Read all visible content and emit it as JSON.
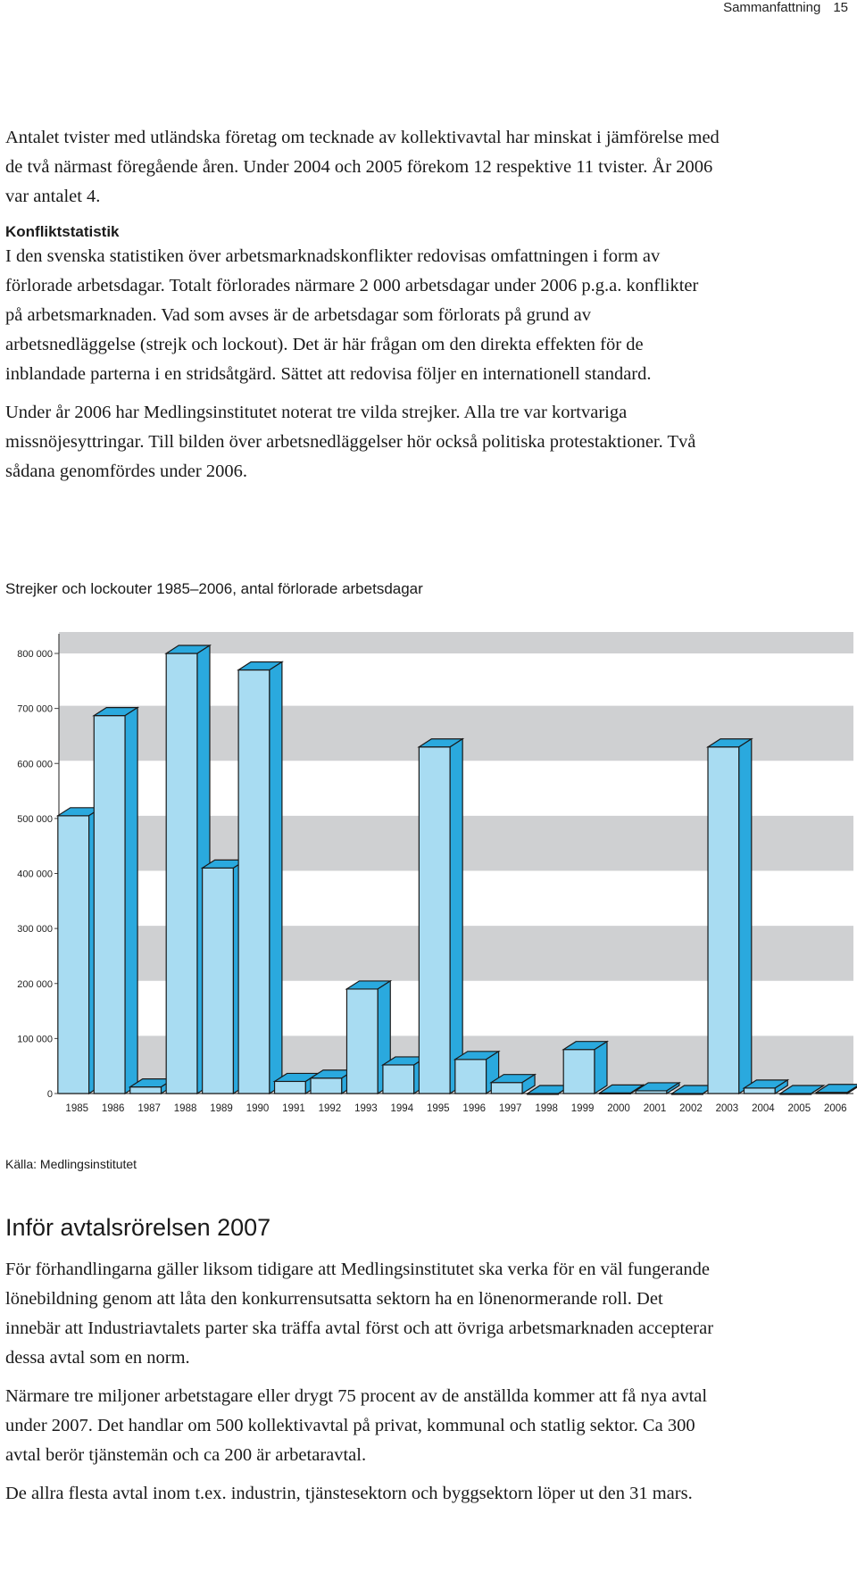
{
  "header": {
    "section": "Sammanfattning",
    "page_number": "15"
  },
  "paragraphs": {
    "p1": "Antalet tvister med utländska företag om tecknade av kollektivavtal har minskat i jämförelse med de två närmast föregående åren. Under 2004 och 2005 förekom 12 respektive 11 tvister. År 2006 var antalet 4.",
    "heading_konflikt": "Konfliktstatistik",
    "p2": "I den svenska statistiken över arbetsmarknadskonflikter redovisas omfattningen i form av förlorade arbetsdagar. Totalt förlorades närmare 2 000 arbetsdagar under 2006 p.g.a. konflikter på arbetsmarknaden. Vad som avses är de arbetsdagar som förlorats på grund av arbetsnedläggelse (strejk och lockout). Det är här frågan om den direkta effekten för de inblandade parterna i en stridsåtgärd. Sättet att redovisa följer en internationell standard.",
    "p3": "Under år 2006 har Medlingsinstitutet noterat tre vilda strejker. Alla tre var kortvariga missnöjesyttringar. Till bilden över arbetsnedläggelser hör också politiska protestaktioner. Två sådana genomfördes under 2006."
  },
  "figure": {
    "caption": "Strejker och lockouter 1985–2006, antal förlorade arbetsdagar",
    "source": "Källa: Medlingsinstitutet"
  },
  "chart_data": {
    "type": "bar",
    "categories": [
      "1985",
      "1986",
      "1987",
      "1988",
      "1989",
      "1990",
      "1991",
      "1992",
      "1993",
      "1994",
      "1995",
      "1996",
      "1997",
      "1998",
      "1999",
      "2000",
      "2001",
      "2002",
      "2003",
      "2004",
      "2005",
      "2006"
    ],
    "values": [
      505000,
      687000,
      12000,
      800000,
      410000,
      770000,
      22000,
      28000,
      190000,
      52000,
      630000,
      62000,
      20000,
      0,
      80000,
      1000,
      5000,
      0,
      630000,
      10000,
      0,
      2000
    ],
    "y_ticks": [
      "0",
      "100 000",
      "200 000",
      "300 000",
      "400 000",
      "500 000",
      "600 000",
      "700 000",
      "800 000"
    ],
    "ylim": [
      0,
      800000
    ],
    "grid": "alternating bands",
    "colors": {
      "bar_front": "#a8dcf2",
      "bar_top": "#2aa9de",
      "bar_side": "#2aa9de",
      "band": "#cfd0d2"
    }
  },
  "section2": {
    "title": "Inför avtalsrörelsen 2007",
    "p1": "För förhandlingarna gäller liksom tidigare att Medlingsinstitutet ska verka för en väl fungerande lönebildning genom att låta den konkurrensutsatta sektorn ha en lönenormerande roll. Det innebär att Industriavtalets parter ska träffa avtal först och att övriga arbetsmarknaden accepterar dessa avtal som en norm.",
    "p2": "Närmare tre miljoner arbetstagare eller drygt 75 procent av de anställda kommer att få nya avtal under 2007. Det handlar om 500 kollektivavtal på privat, kommunal och statlig sektor. Ca 300 avtal berör tjänstemän och ca 200 är arbetaravtal.",
    "p3": "De allra flesta avtal inom t.ex. industrin, tjänstesektorn och byggsektorn löper ut den 31 mars."
  }
}
